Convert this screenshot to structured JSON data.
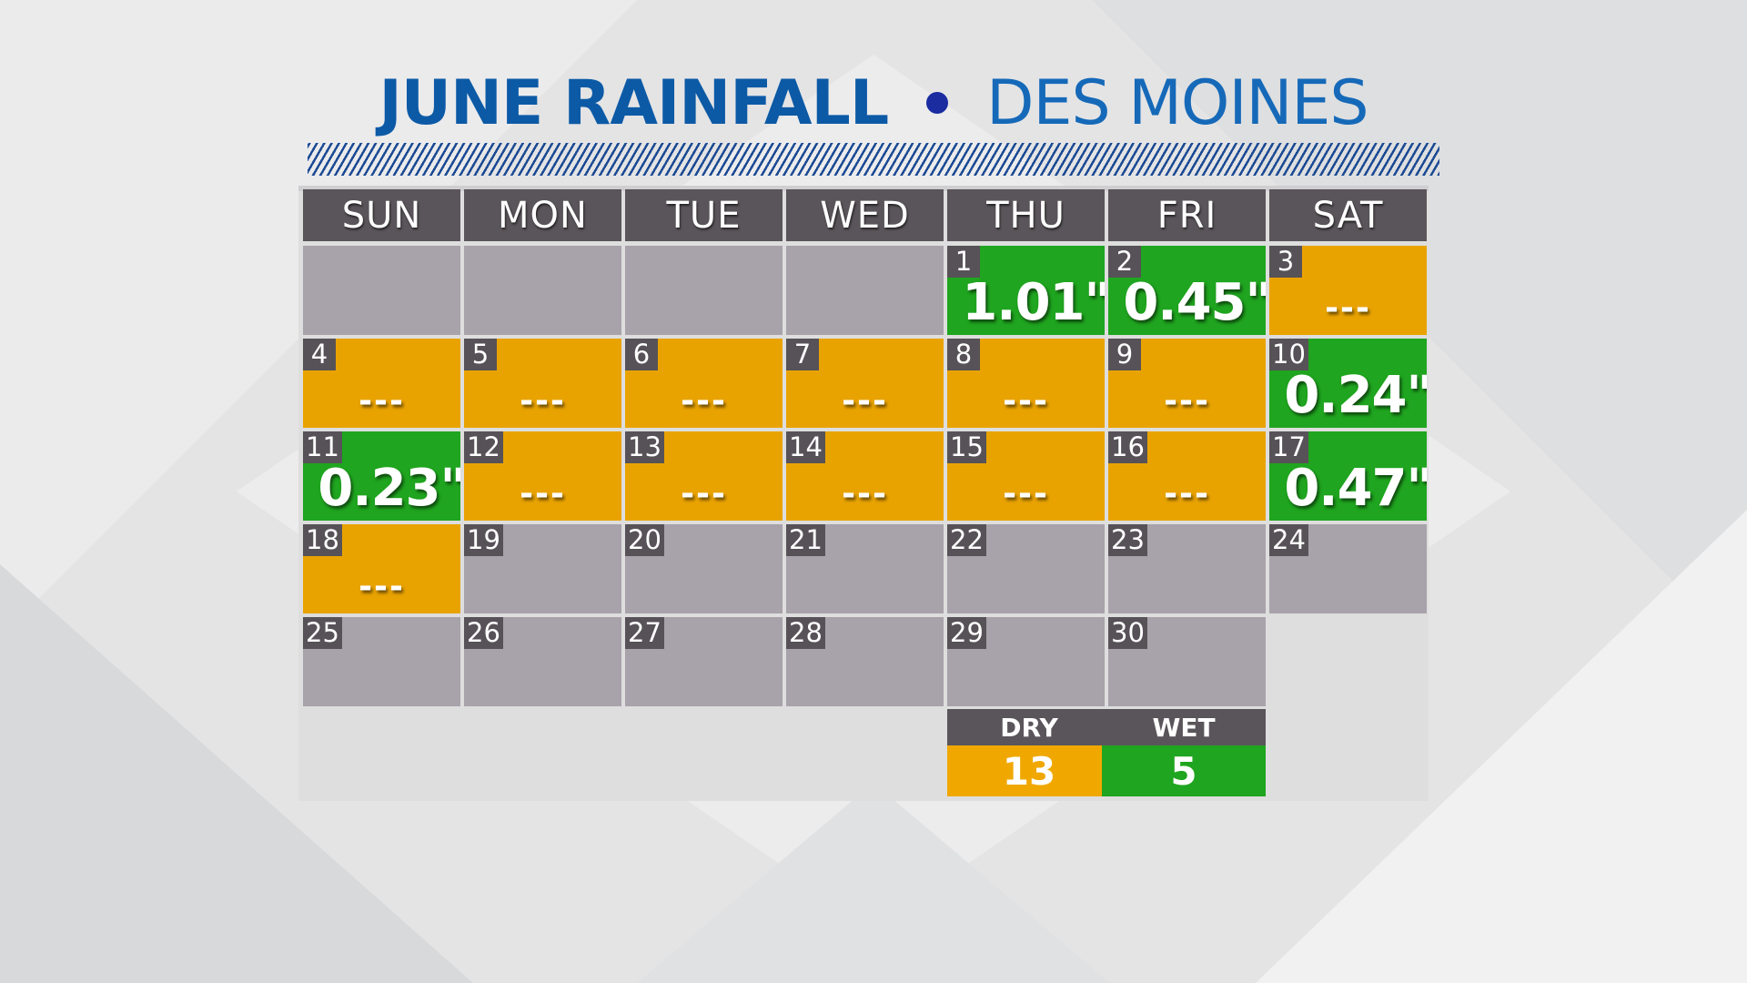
{
  "title": {
    "bold_part": "JUNE RAINFALL",
    "light_part": "DES MOINES"
  },
  "colors": {
    "dry": "#e9a300",
    "wet": "#1fa51f",
    "empty": "#a8a2aa",
    "header": "#5a555a",
    "title_blue": "#0c5aa6"
  },
  "weekdays": [
    "SUN",
    "MON",
    "TUE",
    "WED",
    "THU",
    "FRI",
    "SAT"
  ],
  "dry_mark": "---",
  "days": [
    {
      "day": "1",
      "status": "wet",
      "amount": "1.01\""
    },
    {
      "day": "2",
      "status": "wet",
      "amount": "0.45\""
    },
    {
      "day": "3",
      "status": "dry",
      "amount": "---"
    },
    {
      "day": "4",
      "status": "dry",
      "amount": "---"
    },
    {
      "day": "5",
      "status": "dry",
      "amount": "---"
    },
    {
      "day": "6",
      "status": "dry",
      "amount": "---"
    },
    {
      "day": "7",
      "status": "dry",
      "amount": "---"
    },
    {
      "day": "8",
      "status": "dry",
      "amount": "---"
    },
    {
      "day": "9",
      "status": "dry",
      "amount": "---"
    },
    {
      "day": "10",
      "status": "wet",
      "amount": "0.24\""
    },
    {
      "day": "11",
      "status": "wet",
      "amount": "0.23\""
    },
    {
      "day": "12",
      "status": "dry",
      "amount": "---"
    },
    {
      "day": "13",
      "status": "dry",
      "amount": "---"
    },
    {
      "day": "14",
      "status": "dry",
      "amount": "---"
    },
    {
      "day": "15",
      "status": "dry",
      "amount": "---"
    },
    {
      "day": "16",
      "status": "dry",
      "amount": "---"
    },
    {
      "day": "17",
      "status": "wet",
      "amount": "0.47\""
    },
    {
      "day": "18",
      "status": "dry",
      "amount": "---"
    },
    {
      "day": "19",
      "status": "gray",
      "amount": ""
    },
    {
      "day": "20",
      "status": "gray",
      "amount": ""
    },
    {
      "day": "21",
      "status": "gray",
      "amount": ""
    },
    {
      "day": "22",
      "status": "gray",
      "amount": ""
    },
    {
      "day": "23",
      "status": "gray",
      "amount": ""
    },
    {
      "day": "24",
      "status": "gray",
      "amount": ""
    },
    {
      "day": "25",
      "status": "gray",
      "amount": ""
    },
    {
      "day": "26",
      "status": "gray",
      "amount": ""
    },
    {
      "day": "27",
      "status": "gray",
      "amount": ""
    },
    {
      "day": "28",
      "status": "gray",
      "amount": ""
    },
    {
      "day": "29",
      "status": "gray",
      "amount": ""
    },
    {
      "day": "30",
      "status": "gray",
      "amount": ""
    }
  ],
  "legend": {
    "dry_label": "DRY",
    "dry_count": "13",
    "wet_label": "WET",
    "wet_count": "5"
  }
}
